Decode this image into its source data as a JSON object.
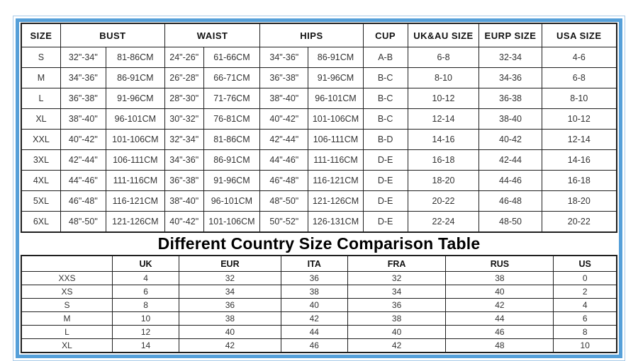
{
  "frame": {
    "outer_border_color": "#a9cbe9",
    "inner_border_color": "#56a0d9",
    "cell_border_color": "#1f1f1f",
    "background_color": "#ffffff"
  },
  "size_chart": {
    "header_cells": [
      {
        "label": "SIZE",
        "span": 1
      },
      {
        "label": "BUST",
        "span": 2
      },
      {
        "label": "WAIST",
        "span": 2
      },
      {
        "label": "HIPS",
        "span": 2
      },
      {
        "label": "CUP",
        "span": 1
      },
      {
        "label": "UK&AU SIZE",
        "span": 1
      },
      {
        "label": "EURP SIZE",
        "span": 1
      },
      {
        "label": "USA SIZE",
        "span": 1
      }
    ],
    "rows": [
      [
        "S",
        "32\"-34\"",
        "81-86CM",
        "24\"-26\"",
        "61-66CM",
        "34\"-36\"",
        "86-91CM",
        "A-B",
        "6-8",
        "32-34",
        "4-6"
      ],
      [
        "M",
        "34\"-36\"",
        "86-91CM",
        "26\"-28\"",
        "66-71CM",
        "36\"-38\"",
        "91-96CM",
        "B-C",
        "8-10",
        "34-36",
        "6-8"
      ],
      [
        "L",
        "36\"-38\"",
        "91-96CM",
        "28\"-30\"",
        "71-76CM",
        "38\"-40\"",
        "96-101CM",
        "B-C",
        "10-12",
        "36-38",
        "8-10"
      ],
      [
        "XL",
        "38\"-40\"",
        "96-101CM",
        "30\"-32\"",
        "76-81CM",
        "40\"-42\"",
        "101-106CM",
        "B-C",
        "12-14",
        "38-40",
        "10-12"
      ],
      [
        "XXL",
        "40\"-42\"",
        "101-106CM",
        "32\"-34\"",
        "81-86CM",
        "42\"-44\"",
        "106-111CM",
        "B-D",
        "14-16",
        "40-42",
        "12-14"
      ],
      [
        "3XL",
        "42\"-44\"",
        "106-111CM",
        "34\"-36\"",
        "86-91CM",
        "44\"-46\"",
        "111-116CM",
        "D-E",
        "16-18",
        "42-44",
        "14-16"
      ],
      [
        "4XL",
        "44\"-46\"",
        "111-116CM",
        "36\"-38\"",
        "91-96CM",
        "46\"-48\"",
        "116-121CM",
        "D-E",
        "18-20",
        "44-46",
        "16-18"
      ],
      [
        "5XL",
        "46\"-48\"",
        "116-121CM",
        "38\"-40\"",
        "96-101CM",
        "48\"-50\"",
        "121-126CM",
        "D-E",
        "20-22",
        "46-48",
        "18-20"
      ],
      [
        "6XL",
        "48\"-50\"",
        "121-126CM",
        "40\"-42\"",
        "101-106CM",
        "50\"-52\"",
        "126-131CM",
        "D-E",
        "22-24",
        "48-50",
        "20-22"
      ]
    ]
  },
  "comparison": {
    "title": "Different Country Size Comparison Table",
    "headers": [
      "",
      "UK",
      "EUR",
      "ITA",
      "FRA",
      "RUS",
      "US"
    ],
    "rows": [
      [
        "XXS",
        "4",
        "32",
        "36",
        "32",
        "38",
        "0"
      ],
      [
        "XS",
        "6",
        "34",
        "38",
        "34",
        "40",
        "2"
      ],
      [
        "S",
        "8",
        "36",
        "40",
        "36",
        "42",
        "4"
      ],
      [
        "M",
        "10",
        "38",
        "42",
        "38",
        "44",
        "6"
      ],
      [
        "L",
        "12",
        "40",
        "44",
        "40",
        "46",
        "8"
      ],
      [
        "XL",
        "14",
        "42",
        "46",
        "42",
        "48",
        "10"
      ]
    ]
  }
}
